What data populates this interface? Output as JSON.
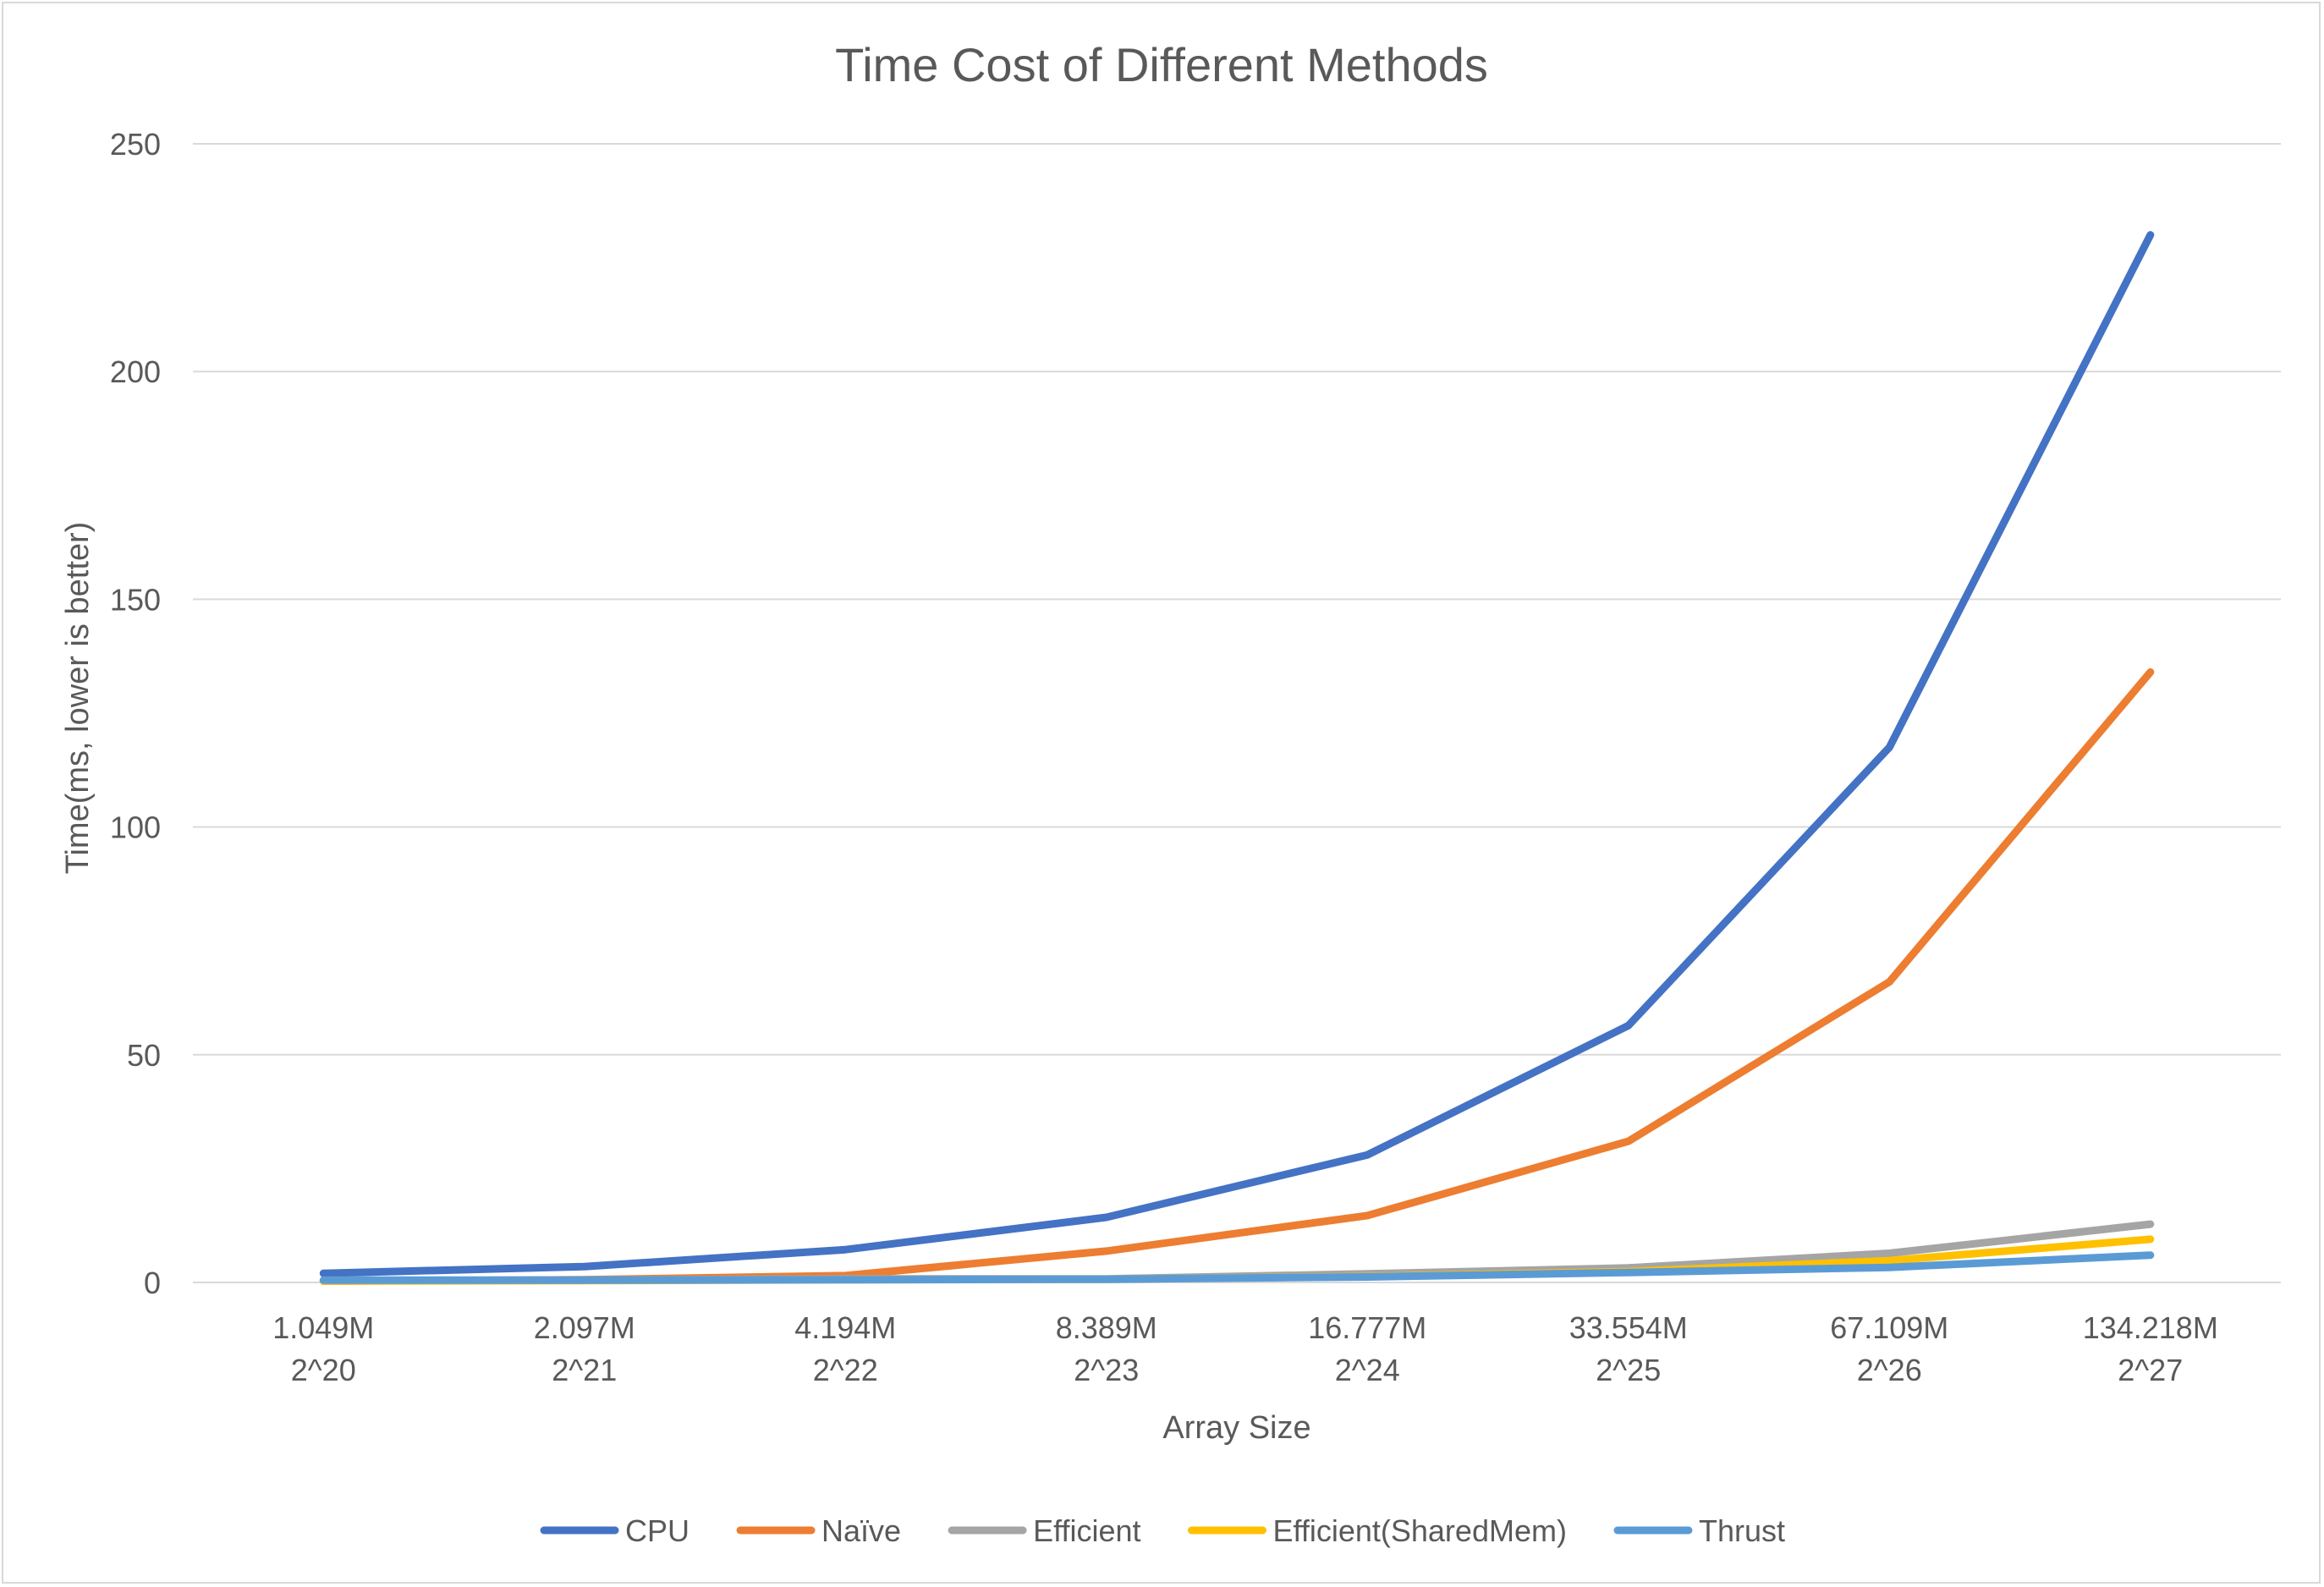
{
  "chart_data": {
    "type": "line",
    "title": "Time Cost of Different Methods",
    "xlabel": "Array Size",
    "ylabel": "Time(ms, lower is better)",
    "ylim": [
      0,
      250
    ],
    "yticks": [
      0,
      50,
      100,
      150,
      200,
      250
    ],
    "grid": true,
    "legend_position": "bottom",
    "categories": [
      {
        "size": "1.049M",
        "power": "2^20"
      },
      {
        "size": "2.097M",
        "power": "2^21"
      },
      {
        "size": "4.194M",
        "power": "2^22"
      },
      {
        "size": "8.389M",
        "power": "2^23"
      },
      {
        "size": "16.777M",
        "power": "2^24"
      },
      {
        "size": "33.554M",
        "power": "2^25"
      },
      {
        "size": "67.109M",
        "power": "2^26"
      },
      {
        "size": "134.218M",
        "power": "2^27"
      }
    ],
    "series": [
      {
        "name": "CPU",
        "color": "#4472c4",
        "values": [
          2.0,
          3.5,
          7.2,
          14.3,
          28.0,
          56.4,
          117.5,
          230.0
        ]
      },
      {
        "name": "Naïve",
        "color": "#ed7d31",
        "values": [
          0.3,
          0.6,
          1.5,
          6.9,
          14.7,
          31.0,
          66.0,
          134.0
        ]
      },
      {
        "name": "Efficient",
        "color": "#a5a5a5",
        "values": [
          0.4,
          0.5,
          0.8,
          0.8,
          1.9,
          3.2,
          6.4,
          12.8
        ]
      },
      {
        "name": "Efficient(SharedMem)",
        "color": "#ffc000",
        "values": [
          0.3,
          0.4,
          0.6,
          0.7,
          1.3,
          2.4,
          4.8,
          9.5
        ]
      },
      {
        "name": "Thrust",
        "color": "#5b9bd5",
        "values": [
          0.5,
          0.5,
          0.6,
          0.7,
          1.2,
          2.2,
          3.3,
          6.0
        ]
      }
    ]
  }
}
